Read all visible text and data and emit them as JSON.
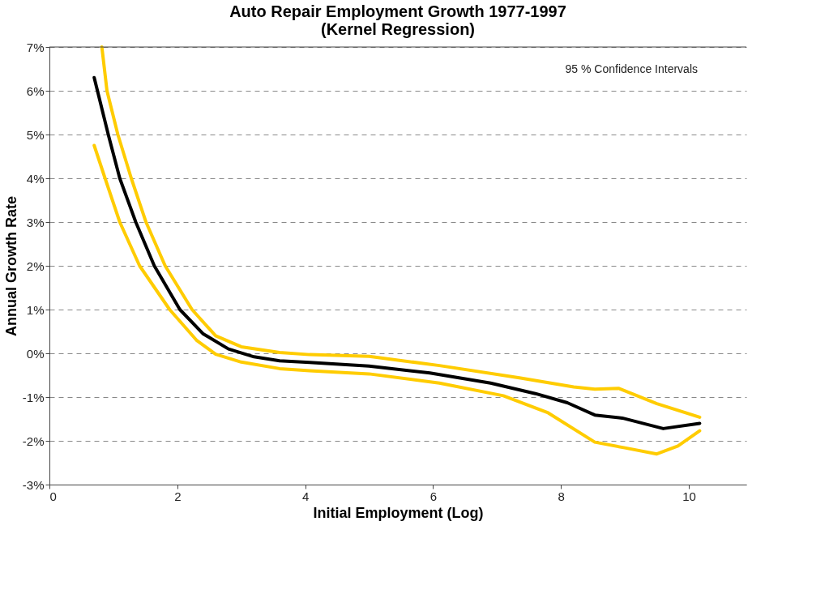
{
  "chart_data": {
    "type": "line",
    "title": [
      "Auto Repair Employment Growth 1977-1997",
      "(Kernel Regression)"
    ],
    "xlabel": "Initial Employment (Log)",
    "ylabel": "Annual Growth Rate",
    "annotations": [
      "95 % Confidence Intervals"
    ],
    "xlim": [
      0,
      10.9
    ],
    "xticks": [
      0,
      2,
      4,
      6,
      8,
      10
    ],
    "ylim": [
      -3,
      7
    ],
    "yticks": [
      {
        "value": -3,
        "label": "-3%"
      },
      {
        "value": -2,
        "label": "-2%"
      },
      {
        "value": -1,
        "label": "-1%"
      },
      {
        "value": 0,
        "label": "0%"
      },
      {
        "value": 1,
        "label": "1%"
      },
      {
        "value": 2,
        "label": "2%"
      },
      {
        "value": 3,
        "label": "3%"
      },
      {
        "value": 4,
        "label": "4%"
      },
      {
        "value": 5,
        "label": "5%"
      },
      {
        "value": 6,
        "label": "6%"
      },
      {
        "value": 7,
        "label": "7%"
      }
    ],
    "grid": "y",
    "marker": "none",
    "line_style": "solid",
    "series": [
      {
        "color": "#ffcc00",
        "x": [
          0.82,
          0.9,
          1.07,
          1.28,
          1.51,
          1.81,
          2.23,
          2.6,
          3.0,
          3.6,
          4.07,
          5.0,
          6.1,
          7.35,
          8.2,
          8.53,
          8.9,
          9.5,
          10.17
        ],
        "values": [
          7.0,
          6.0,
          5.0,
          4.0,
          3.0,
          2.0,
          1.0,
          0.4,
          0.15,
          0.02,
          -0.03,
          -0.07,
          -0.28,
          -0.56,
          -0.77,
          -0.82,
          -0.8,
          -1.15,
          -1.46
        ]
      },
      {
        "color": "#000000",
        "x": [
          0.7,
          0.92,
          1.1,
          1.35,
          1.64,
          2.04,
          2.4,
          2.8,
          3.2,
          3.6,
          4.07,
          5.0,
          5.95,
          6.9,
          7.6,
          8.1,
          8.53,
          8.96,
          9.6,
          10.17
        ],
        "values": [
          6.3,
          5.0,
          4.0,
          3.0,
          2.0,
          1.0,
          0.45,
          0.1,
          -0.08,
          -0.17,
          -0.21,
          -0.29,
          -0.45,
          -0.68,
          -0.92,
          -1.13,
          -1.41,
          -1.48,
          -1.72,
          -1.6
        ]
      },
      {
        "color": "#ffcc00",
        "x": [
          0.7,
          0.87,
          1.1,
          1.41,
          1.88,
          2.3,
          2.6,
          3.0,
          3.6,
          4.07,
          5.0,
          6.1,
          7.1,
          7.8,
          8.53,
          9.0,
          9.5,
          9.83,
          10.17
        ],
        "values": [
          4.75,
          4.0,
          3.0,
          2.0,
          1.0,
          0.3,
          -0.02,
          -0.2,
          -0.35,
          -0.4,
          -0.47,
          -0.68,
          -0.97,
          -1.36,
          -2.03,
          -2.16,
          -2.3,
          -2.12,
          -1.77
        ]
      }
    ]
  }
}
